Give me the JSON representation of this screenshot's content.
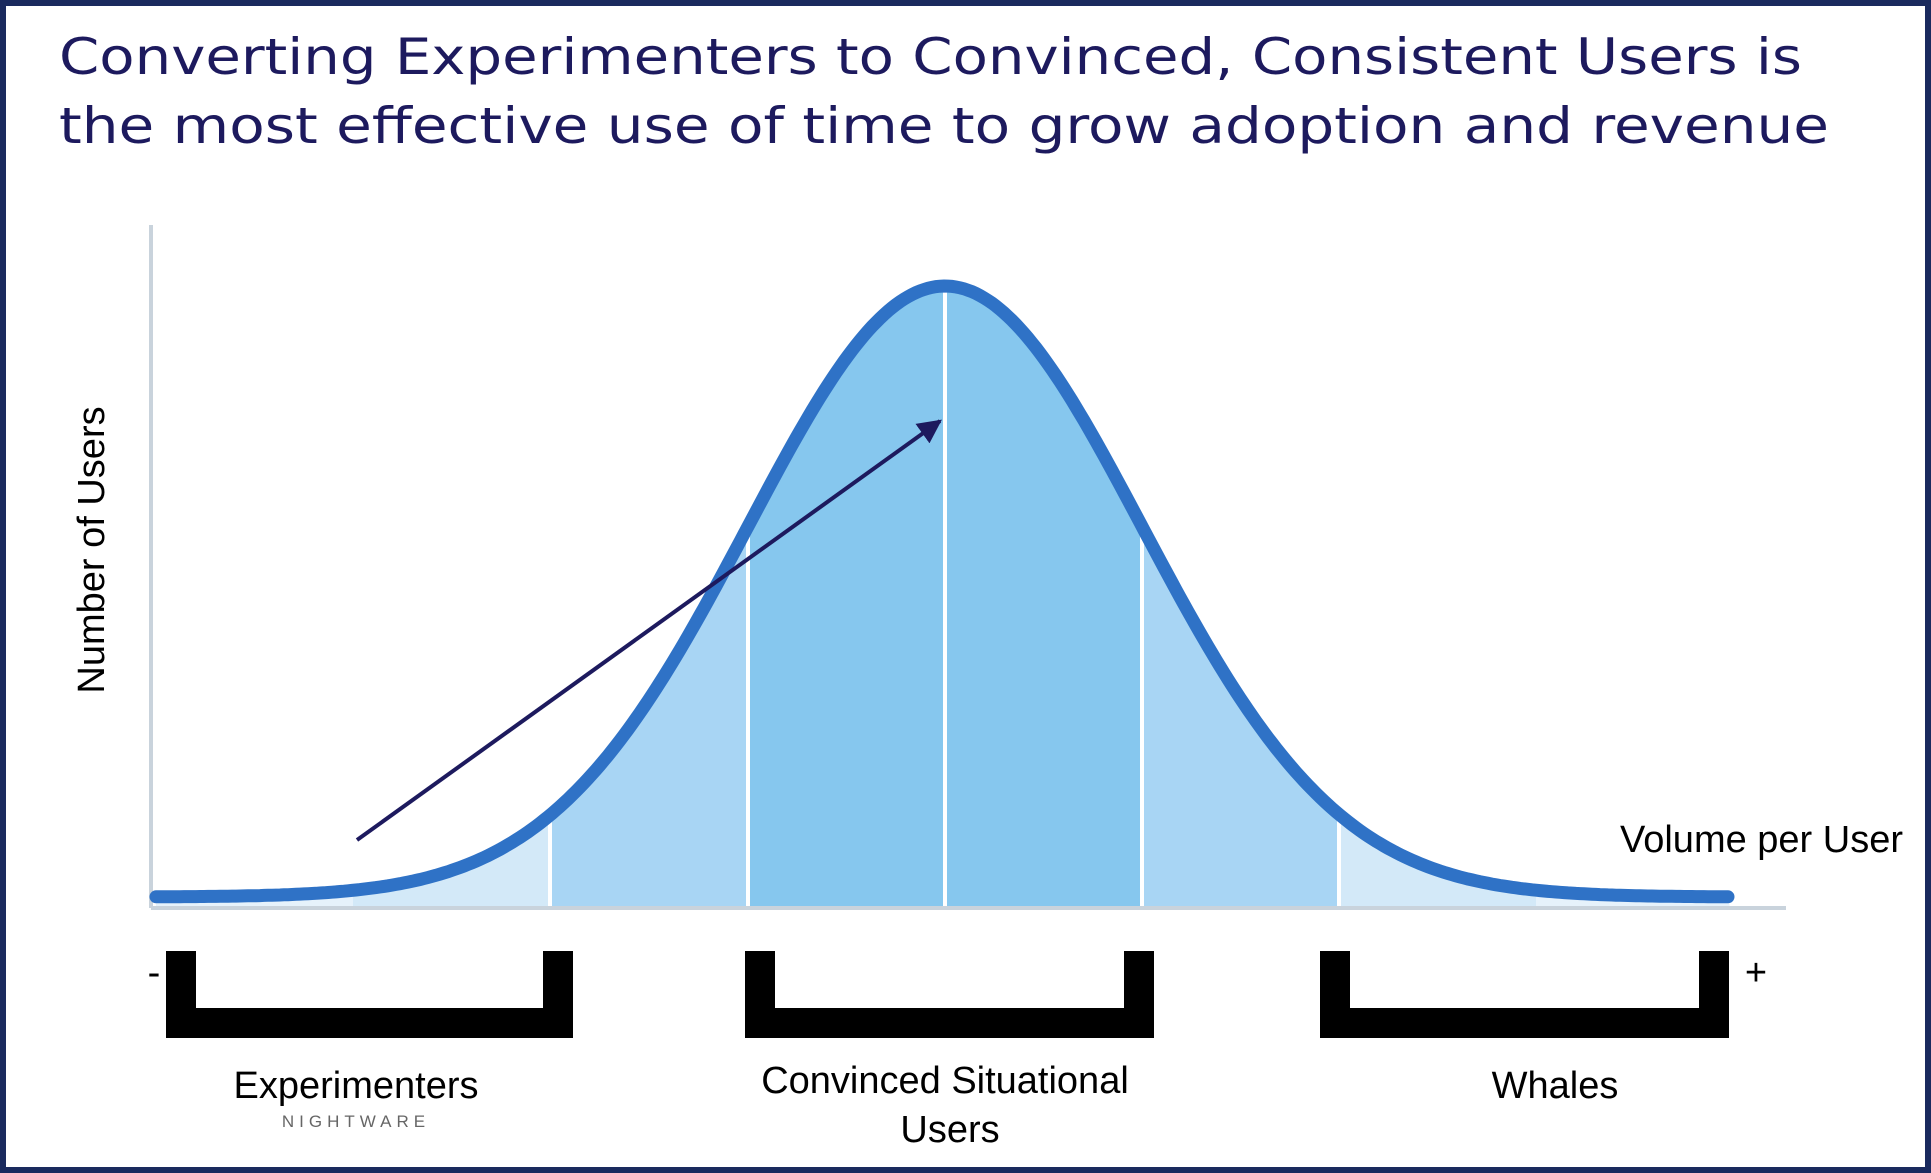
{
  "title": {
    "lines": [
      "Converting Experimenters to Convinced, Consistent Users is",
      "the most effective use of time to grow adoption and revenue"
    ]
  },
  "axes": {
    "y_label": "Number of Users",
    "x_label": "Volume per User",
    "low_end": "-",
    "high_end": "+"
  },
  "segments": [
    {
      "label_lines": [
        "Experimenters"
      ]
    },
    {
      "label_lines": [
        "Convinced Situational",
        "Users"
      ]
    },
    {
      "label_lines": [
        "Whales"
      ]
    }
  ],
  "brand": "NIGHTWARE"
}
